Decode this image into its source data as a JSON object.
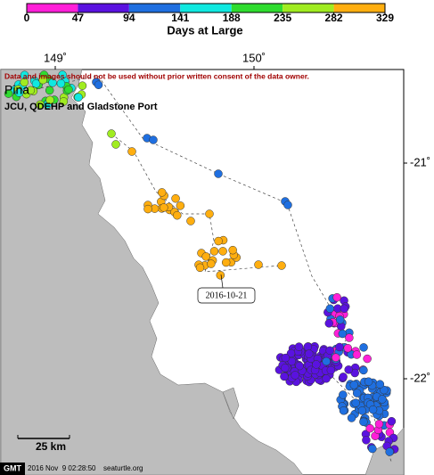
{
  "colorbar": {
    "ticks": [
      0,
      47,
      94,
      141,
      188,
      235,
      282,
      329
    ],
    "colors": [
      "#ff1fd8",
      "#5a12e0",
      "#1f6fe0",
      "#10e8e0",
      "#2fdc2f",
      "#a0ec20",
      "#ffae10"
    ],
    "label": "Days at Large"
  },
  "map": {
    "lon_labels": [
      "149˚",
      "150˚"
    ],
    "lat_labels": [
      "-21˚",
      "-22˚"
    ],
    "notice": "Data and images should not be used without prior written consent of the data owner.",
    "title": "Pina",
    "subtitle": "JCU, QDEHP and Gladstone Port",
    "date_label": "2016-10-21",
    "scale": "25 km"
  },
  "footer": {
    "logo": "GMT",
    "timestamp": "2016 Nov  9 02:28:50",
    "site": "seaturtle.org"
  }
}
